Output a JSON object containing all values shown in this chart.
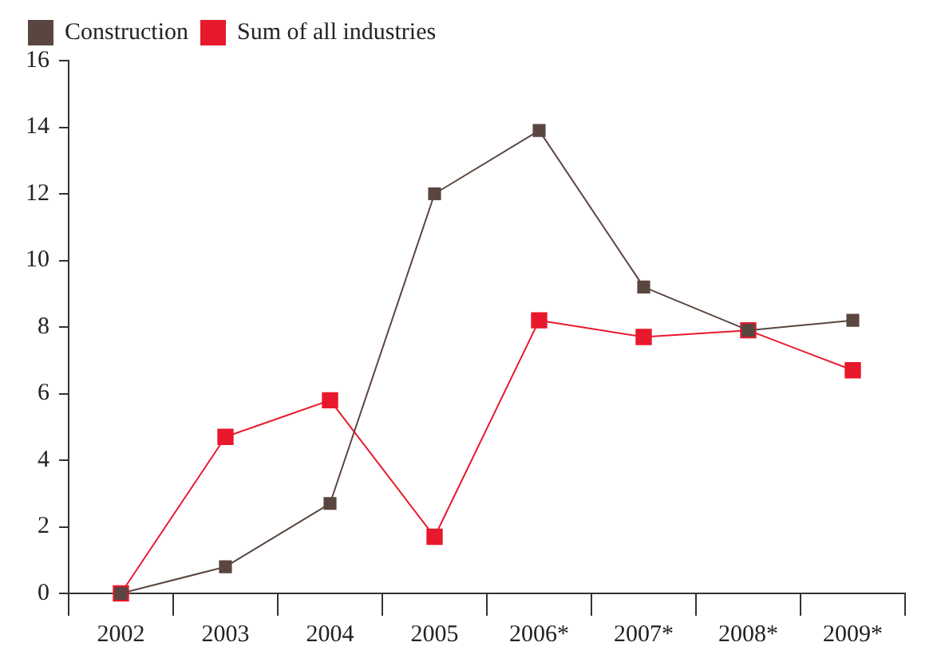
{
  "chart_data": {
    "type": "line",
    "categories": [
      "2002",
      "2003",
      "2004",
      "2005",
      "2006*",
      "2007*",
      "2008*",
      "2009*"
    ],
    "series": [
      {
        "name": "Construction",
        "color": "#5a4640",
        "values": [
          0,
          0.8,
          2.7,
          12.0,
          13.9,
          9.2,
          7.9,
          8.2
        ]
      },
      {
        "name": "Sum of all industries",
        "color": "#e8192c",
        "values": [
          0,
          4.7,
          5.8,
          1.7,
          8.2,
          7.7,
          7.9,
          6.7
        ]
      }
    ],
    "ylim": [
      0,
      16
    ],
    "yticks": [
      0,
      2,
      4,
      6,
      8,
      10,
      12,
      14,
      16
    ],
    "grid": false,
    "legend": "top left",
    "marker": "square",
    "line_style": "solid"
  }
}
